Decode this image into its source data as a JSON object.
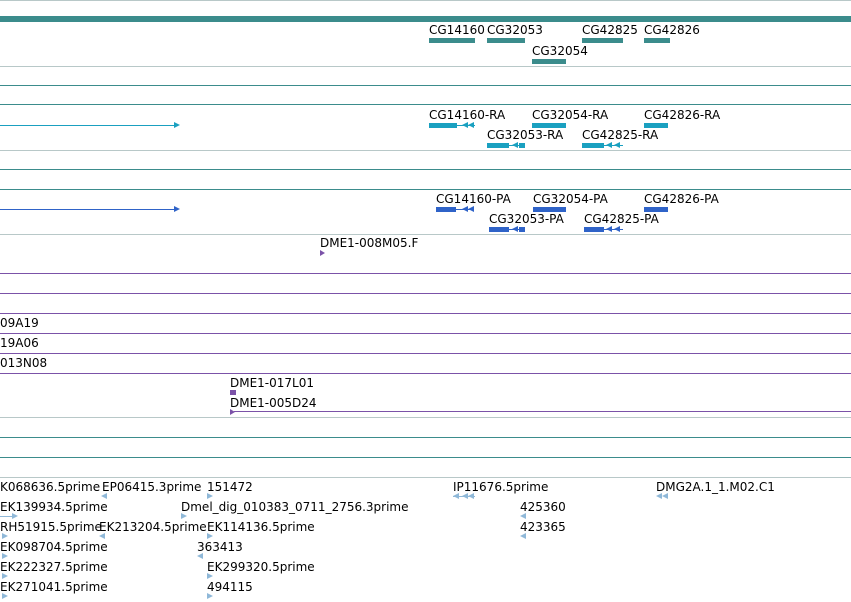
{
  "genes": {
    "labels": [
      "CG14160",
      "CG32053",
      "CG32054",
      "CG42825",
      "CG42826"
    ],
    "color": "#3b8c8c"
  },
  "transcripts": {
    "labels": [
      "CG14160-RA",
      "CG32054-RA",
      "CG42826-RA",
      "CG32053-RA",
      "CG42825-RA"
    ],
    "color": "#1aa0c0"
  },
  "proteins": {
    "labels": [
      "CG14160-PA",
      "CG32054-PA",
      "CG42826-PA",
      "CG32053-PA",
      "CG42825-PA"
    ],
    "color": "#2f63c8"
  },
  "clones_a": {
    "labels": [
      "DME1-008M05.F"
    ],
    "color": "#7b52a8"
  },
  "clone_rows": [
    "09A19",
    "19A06",
    "013N08"
  ],
  "clones_b": {
    "labels": [
      "DME1-017L01",
      "DME1-005D24"
    ],
    "color": "#7b52a8"
  },
  "ests": {
    "labels": [
      "K068636.5prime",
      "EP06415.3prime",
      "151472",
      "IP11676.5prime",
      "DMG2A.1_1.M02.C1",
      "EK139934.5prime",
      "Dmel_dig_010383_0711_2756.3prime",
      "425360",
      "RH51915.5prime",
      "EK213204.5prime",
      "EK114136.5prime",
      "423365",
      "EK098704.5prime",
      "363413",
      "EK222327.5prime",
      "EK299320.5prime",
      "EK271041.5prime",
      "494115"
    ],
    "color": "#8fb8d8"
  }
}
